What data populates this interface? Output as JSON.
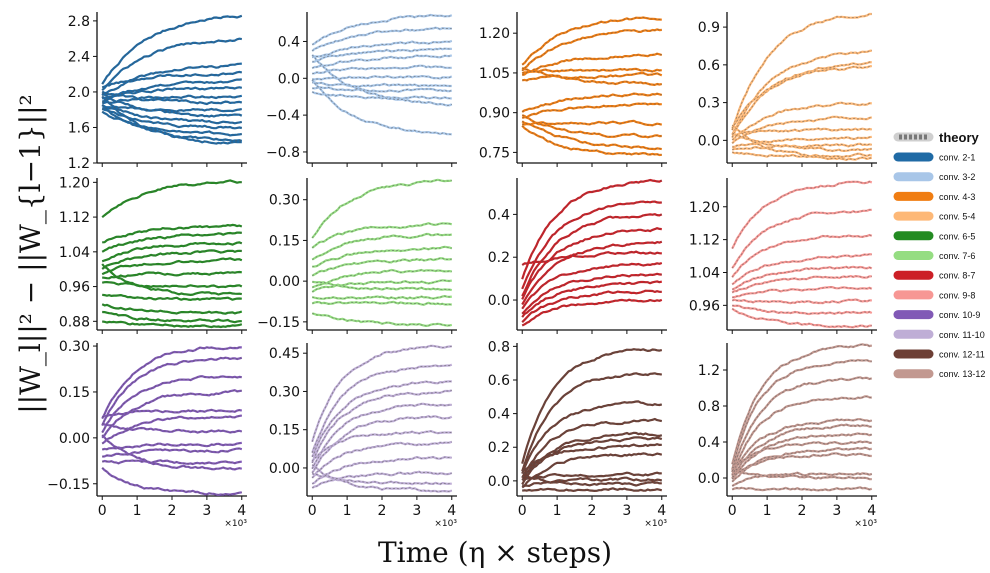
{
  "figure": {
    "xlabel": "Time (η × steps)",
    "ylabel": "||W_l||² − ||W_{l−1}||²"
  },
  "legend": {
    "theory_label": "theory",
    "entries": [
      {
        "label": "conv. 2-1",
        "color": "#1f6aa5"
      },
      {
        "label": "conv. 3-2",
        "color": "#a8c6e8"
      },
      {
        "label": "conv. 4-3",
        "color": "#f07d12"
      },
      {
        "label": "conv. 5-4",
        "color": "#fdb877"
      },
      {
        "label": "conv. 6-5",
        "color": "#238b22"
      },
      {
        "label": "conv. 7-6",
        "color": "#95dd82"
      },
      {
        "label": "conv. 8-7",
        "color": "#cc1f26"
      },
      {
        "label": "conv. 9-8",
        "color": "#f79794"
      },
      {
        "label": "conv. 10-9",
        "color": "#8159b6"
      },
      {
        "label": "conv. 11-10",
        "color": "#bfaed6"
      },
      {
        "label": "conv. 12-11",
        "color": "#6d3f35"
      },
      {
        "label": "conv. 13-12",
        "color": "#c29890"
      }
    ]
  },
  "chart_data": [
    {
      "type": "line",
      "series_name": "conv. 2-1",
      "color": "#1f6aa5",
      "ylim": [
        1.2,
        2.9
      ],
      "yticks": [
        1.2,
        1.6,
        2.0,
        2.4,
        2.8
      ],
      "ytick_labels": [
        "1.2",
        "1.6",
        "2.0",
        "2.4",
        "2.8"
      ],
      "xlim": [
        0,
        4
      ],
      "xticks": [
        0,
        1,
        2,
        3,
        4
      ],
      "xtick_labels": [
        "0",
        "1",
        "2",
        "3",
        "4"
      ],
      "x_multiplier": "×10³",
      "lines": [
        {
          "start": 2.08,
          "end": 2.86
        },
        {
          "start": 2.02,
          "end": 2.6
        },
        {
          "start": 1.95,
          "end": 2.3
        },
        {
          "start": 2.05,
          "end": 2.22
        },
        {
          "start": 1.9,
          "end": 2.12
        },
        {
          "start": 1.92,
          "end": 2.05
        },
        {
          "start": 1.88,
          "end": 1.95
        },
        {
          "start": 2.0,
          "end": 1.88
        },
        {
          "start": 1.82,
          "end": 1.8
        },
        {
          "start": 1.98,
          "end": 1.72
        },
        {
          "start": 1.86,
          "end": 1.66
        },
        {
          "start": 1.8,
          "end": 1.6
        },
        {
          "start": 1.78,
          "end": 1.52
        },
        {
          "start": 1.84,
          "end": 1.45
        },
        {
          "start": 1.95,
          "end": 1.42
        }
      ]
    },
    {
      "type": "line",
      "series_name": "conv. 3-2",
      "color": "#a8c6e8",
      "ylim": [
        -0.92,
        0.72
      ],
      "yticks": [
        -0.8,
        -0.4,
        0.0,
        0.4
      ],
      "ytick_labels": [
        "−0.8",
        "−0.4",
        "0.0",
        "0.4"
      ],
      "xlim": [
        0,
        4
      ],
      "xticks": [
        0,
        1,
        2,
        3,
        4
      ],
      "xtick_labels": [
        "0",
        "1",
        "2",
        "3",
        "4"
      ],
      "x_multiplier": "×10³",
      "lines": [
        {
          "start": 0.36,
          "end": 0.68
        },
        {
          "start": 0.3,
          "end": 0.54
        },
        {
          "start": 0.22,
          "end": 0.4
        },
        {
          "start": 0.18,
          "end": 0.32
        },
        {
          "start": 0.1,
          "end": 0.24
        },
        {
          "start": 0.05,
          "end": 0.12
        },
        {
          "start": 0.0,
          "end": 0.02
        },
        {
          "start": -0.05,
          "end": -0.08
        },
        {
          "start": -0.1,
          "end": -0.14
        },
        {
          "start": -0.15,
          "end": -0.22
        },
        {
          "start": 0.26,
          "end": -0.28
        },
        {
          "start": -0.02,
          "end": -0.6
        }
      ]
    },
    {
      "type": "line",
      "series_name": "conv. 4-3",
      "color": "#f07d12",
      "ylim": [
        0.71,
        1.28
      ],
      "yticks": [
        0.75,
        0.9,
        1.05,
        1.2
      ],
      "ytick_labels": [
        "0.75",
        "0.90",
        "1.05",
        "1.20"
      ],
      "xlim": [
        0,
        4
      ],
      "xticks": [
        0,
        1,
        2,
        3,
        4
      ],
      "xtick_labels": [
        "0",
        "1",
        "2",
        "3",
        "4"
      ],
      "x_multiplier": "×10³",
      "lines": [
        {
          "start": 1.08,
          "end": 1.26
        },
        {
          "start": 1.06,
          "end": 1.21
        },
        {
          "start": 1.04,
          "end": 1.12
        },
        {
          "start": 1.05,
          "end": 1.06
        },
        {
          "start": 1.02,
          "end": 1.04
        },
        {
          "start": 1.07,
          "end": 1.01
        },
        {
          "start": 0.9,
          "end": 0.97
        },
        {
          "start": 0.88,
          "end": 0.93
        },
        {
          "start": 0.86,
          "end": 0.86
        },
        {
          "start": 0.89,
          "end": 0.81
        },
        {
          "start": 0.87,
          "end": 0.77
        },
        {
          "start": 0.85,
          "end": 0.74
        }
      ]
    },
    {
      "type": "line",
      "series_name": "conv. 5-4",
      "color": "#fdb877",
      "ylim": [
        -0.18,
        1.02
      ],
      "yticks": [
        0.0,
        0.3,
        0.6,
        0.9
      ],
      "ytick_labels": [
        "0.0",
        "0.3",
        "0.6",
        "0.9"
      ],
      "xlim": [
        0,
        4
      ],
      "xticks": [
        0,
        1,
        2,
        3,
        4
      ],
      "xtick_labels": [
        "0",
        "1",
        "2",
        "3",
        "4"
      ],
      "x_multiplier": "×10³",
      "lines": [
        {
          "start": 0.08,
          "end": 1.01
        },
        {
          "start": 0.05,
          "end": 0.7
        },
        {
          "start": 0.02,
          "end": 0.62
        },
        {
          "start": 0.1,
          "end": 0.58
        },
        {
          "start": 0.0,
          "end": 0.3
        },
        {
          "start": -0.02,
          "end": 0.18
        },
        {
          "start": 0.04,
          "end": 0.08
        },
        {
          "start": -0.05,
          "end": 0.02
        },
        {
          "start": -0.08,
          "end": -0.04
        },
        {
          "start": 0.06,
          "end": -0.08
        },
        {
          "start": -0.1,
          "end": -0.12
        },
        {
          "start": 0.12,
          "end": -0.15
        }
      ]
    },
    {
      "type": "line",
      "series_name": "conv. 6-5",
      "color": "#238b22",
      "ylim": [
        0.86,
        1.21
      ],
      "yticks": [
        0.88,
        0.96,
        1.04,
        1.12,
        1.2
      ],
      "ytick_labels": [
        "0.88",
        "0.96",
        "1.04",
        "1.12",
        "1.20"
      ],
      "xlim": [
        0,
        4
      ],
      "xticks": [
        0,
        1,
        2,
        3,
        4
      ],
      "xtick_labels": [
        "0",
        "1",
        "2",
        "3",
        "4"
      ],
      "x_multiplier": "×10³",
      "lines": [
        {
          "start": 1.12,
          "end": 1.2
        },
        {
          "start": 1.06,
          "end": 1.1
        },
        {
          "start": 1.04,
          "end": 1.08
        },
        {
          "start": 1.02,
          "end": 1.06
        },
        {
          "start": 1.0,
          "end": 1.04
        },
        {
          "start": 0.99,
          "end": 1.02
        },
        {
          "start": 0.98,
          "end": 0.99
        },
        {
          "start": 0.97,
          "end": 0.96
        },
        {
          "start": 0.94,
          "end": 0.93
        },
        {
          "start": 0.92,
          "end": 0.9
        },
        {
          "start": 0.9,
          "end": 0.88
        },
        {
          "start": 0.88,
          "end": 0.87
        },
        {
          "start": 1.01,
          "end": 0.94
        }
      ]
    },
    {
      "type": "line",
      "series_name": "conv. 7-6",
      "color": "#95dd82",
      "ylim": [
        -0.18,
        0.38
      ],
      "yticks": [
        -0.15,
        0.0,
        0.15,
        0.3
      ],
      "ytick_labels": [
        "−0.15",
        "0.00",
        "0.15",
        "0.30"
      ],
      "xlim": [
        0,
        4
      ],
      "xticks": [
        0,
        1,
        2,
        3,
        4
      ],
      "xtick_labels": [
        "0",
        "1",
        "2",
        "3",
        "4"
      ],
      "x_multiplier": "×10³",
      "lines": [
        {
          "start": 0.16,
          "end": 0.37
        },
        {
          "start": 0.12,
          "end": 0.21
        },
        {
          "start": 0.08,
          "end": 0.17
        },
        {
          "start": 0.05,
          "end": 0.12
        },
        {
          "start": 0.02,
          "end": 0.08
        },
        {
          "start": -0.02,
          "end": 0.04
        },
        {
          "start": -0.04,
          "end": 0.0
        },
        {
          "start": 0.0,
          "end": -0.03
        },
        {
          "start": -0.06,
          "end": -0.06
        },
        {
          "start": -0.08,
          "end": -0.08
        },
        {
          "start": -0.12,
          "end": -0.16
        }
      ]
    },
    {
      "type": "line",
      "series_name": "conv. 8-7",
      "color": "#cc1f26",
      "ylim": [
        -0.14,
        0.57
      ],
      "yticks": [
        0.0,
        0.2,
        0.4
      ],
      "ytick_labels": [
        "0.0",
        "0.2",
        "0.4"
      ],
      "xlim": [
        0,
        4
      ],
      "xticks": [
        0,
        1,
        2,
        3,
        4
      ],
      "xtick_labels": [
        "0",
        "1",
        "2",
        "3",
        "4"
      ],
      "x_multiplier": "×10³",
      "lines": [
        {
          "start": 0.1,
          "end": 0.56
        },
        {
          "start": 0.05,
          "end": 0.46
        },
        {
          "start": 0.02,
          "end": 0.4
        },
        {
          "start": 0.0,
          "end": 0.33
        },
        {
          "start": -0.02,
          "end": 0.27
        },
        {
          "start": 0.16,
          "end": 0.22
        },
        {
          "start": -0.04,
          "end": 0.17
        },
        {
          "start": -0.06,
          "end": 0.12
        },
        {
          "start": -0.08,
          "end": 0.08
        },
        {
          "start": -0.1,
          "end": 0.04
        },
        {
          "start": -0.12,
          "end": 0.0
        }
      ]
    },
    {
      "type": "line",
      "series_name": "conv. 9-8",
      "color": "#f79794",
      "ylim": [
        0.9,
        1.27
      ],
      "yticks": [
        0.96,
        1.04,
        1.12,
        1.2
      ],
      "ytick_labels": [
        "0.96",
        "1.04",
        "1.12",
        "1.20"
      ],
      "xlim": [
        0,
        4
      ],
      "xticks": [
        0,
        1,
        2,
        3,
        4
      ],
      "xtick_labels": [
        "0",
        "1",
        "2",
        "3",
        "4"
      ],
      "x_multiplier": "×10³",
      "lines": [
        {
          "start": 1.1,
          "end": 1.26
        },
        {
          "start": 1.05,
          "end": 1.19
        },
        {
          "start": 1.03,
          "end": 1.13
        },
        {
          "start": 1.01,
          "end": 1.08
        },
        {
          "start": 1.0,
          "end": 1.05
        },
        {
          "start": 0.99,
          "end": 1.03
        },
        {
          "start": 0.98,
          "end": 1.0
        },
        {
          "start": 0.97,
          "end": 0.97
        },
        {
          "start": 0.96,
          "end": 0.94
        },
        {
          "start": 0.95,
          "end": 0.91
        }
      ]
    },
    {
      "type": "line",
      "series_name": "conv. 10-9",
      "color": "#8159b6",
      "ylim": [
        -0.19,
        0.31
      ],
      "yticks": [
        -0.15,
        0.0,
        0.15,
        0.3
      ],
      "ytick_labels": [
        "−0.15",
        "0.00",
        "0.15",
        "0.30"
      ],
      "xlim": [
        0,
        4
      ],
      "xticks": [
        0,
        1,
        2,
        3,
        4
      ],
      "xtick_labels": [
        "0",
        "1",
        "2",
        "3",
        "4"
      ],
      "x_multiplier": "×10³",
      "lines": [
        {
          "start": 0.06,
          "end": 0.3
        },
        {
          "start": 0.04,
          "end": 0.26
        },
        {
          "start": 0.02,
          "end": 0.2
        },
        {
          "start": 0.0,
          "end": 0.15
        },
        {
          "start": 0.07,
          "end": 0.09
        },
        {
          "start": -0.02,
          "end": 0.07
        },
        {
          "start": 0.05,
          "end": 0.02
        },
        {
          "start": -0.04,
          "end": -0.02
        },
        {
          "start": -0.06,
          "end": -0.04
        },
        {
          "start": -0.08,
          "end": -0.08
        },
        {
          "start": 0.01,
          "end": -0.1
        },
        {
          "start": -0.1,
          "end": -0.18
        }
      ]
    },
    {
      "type": "line",
      "series_name": "conv. 11-10",
      "color": "#bfaed6",
      "ylim": [
        -0.11,
        0.49
      ],
      "yticks": [
        0.0,
        0.15,
        0.3,
        0.45
      ],
      "ytick_labels": [
        "0.00",
        "0.15",
        "0.30",
        "0.45"
      ],
      "xlim": [
        0,
        4
      ],
      "xticks": [
        0,
        1,
        2,
        3,
        4
      ],
      "xtick_labels": [
        "0",
        "1",
        "2",
        "3",
        "4"
      ],
      "x_multiplier": "×10³",
      "lines": [
        {
          "start": 0.1,
          "end": 0.48
        },
        {
          "start": 0.06,
          "end": 0.4
        },
        {
          "start": 0.04,
          "end": 0.34
        },
        {
          "start": 0.02,
          "end": 0.3
        },
        {
          "start": 0.0,
          "end": 0.25
        },
        {
          "start": -0.02,
          "end": 0.2
        },
        {
          "start": 0.03,
          "end": 0.14
        },
        {
          "start": -0.04,
          "end": 0.1
        },
        {
          "start": -0.06,
          "end": 0.04
        },
        {
          "start": -0.08,
          "end": -0.02
        },
        {
          "start": -0.02,
          "end": -0.06
        },
        {
          "start": 0.01,
          "end": -0.09
        }
      ]
    },
    {
      "type": "line",
      "series_name": "conv. 12-11",
      "color": "#6d3f35",
      "ylim": [
        -0.09,
        0.82
      ],
      "yticks": [
        0.0,
        0.2,
        0.4,
        0.6,
        0.8
      ],
      "ytick_labels": [
        "0.0",
        "0.2",
        "0.4",
        "0.6",
        "0.8"
      ],
      "xlim": [
        0,
        4
      ],
      "xticks": [
        0,
        1,
        2,
        3,
        4
      ],
      "xtick_labels": [
        "0",
        "1",
        "2",
        "3",
        "4"
      ],
      "x_multiplier": "×10³",
      "lines": [
        {
          "start": 0.1,
          "end": 0.78
        },
        {
          "start": 0.06,
          "end": 0.64
        },
        {
          "start": 0.04,
          "end": 0.46
        },
        {
          "start": 0.02,
          "end": 0.36
        },
        {
          "start": 0.0,
          "end": 0.28
        },
        {
          "start": -0.02,
          "end": 0.25
        },
        {
          "start": 0.05,
          "end": 0.21
        },
        {
          "start": -0.04,
          "end": 0.16
        },
        {
          "start": 0.01,
          "end": 0.04
        },
        {
          "start": -0.03,
          "end": 0.01
        },
        {
          "start": 0.03,
          "end": -0.02
        },
        {
          "start": -0.06,
          "end": -0.05
        }
      ]
    },
    {
      "type": "line",
      "series_name": "conv. 13-12",
      "color": "#c29890",
      "ylim": [
        -0.2,
        1.5
      ],
      "yticks": [
        0.0,
        0.4,
        0.8,
        1.2
      ],
      "ytick_labels": [
        "0.0",
        "0.4",
        "0.8",
        "1.2"
      ],
      "xlim": [
        0,
        4
      ],
      "xticks": [
        0,
        1,
        2,
        3,
        4
      ],
      "xtick_labels": [
        "0",
        "1",
        "2",
        "3",
        "4"
      ],
      "x_multiplier": "×10³",
      "lines": [
        {
          "start": 0.15,
          "end": 1.46
        },
        {
          "start": 0.1,
          "end": 1.3
        },
        {
          "start": 0.06,
          "end": 1.1
        },
        {
          "start": 0.04,
          "end": 0.9
        },
        {
          "start": 0.02,
          "end": 0.64
        },
        {
          "start": 0.0,
          "end": 0.58
        },
        {
          "start": -0.02,
          "end": 0.48
        },
        {
          "start": 0.08,
          "end": 0.4
        },
        {
          "start": -0.05,
          "end": 0.32
        },
        {
          "start": 0.01,
          "end": 0.26
        },
        {
          "start": -0.08,
          "end": 0.05
        },
        {
          "start": 0.12,
          "end": 0.0
        },
        {
          "start": -0.12,
          "end": -0.12
        }
      ]
    }
  ]
}
